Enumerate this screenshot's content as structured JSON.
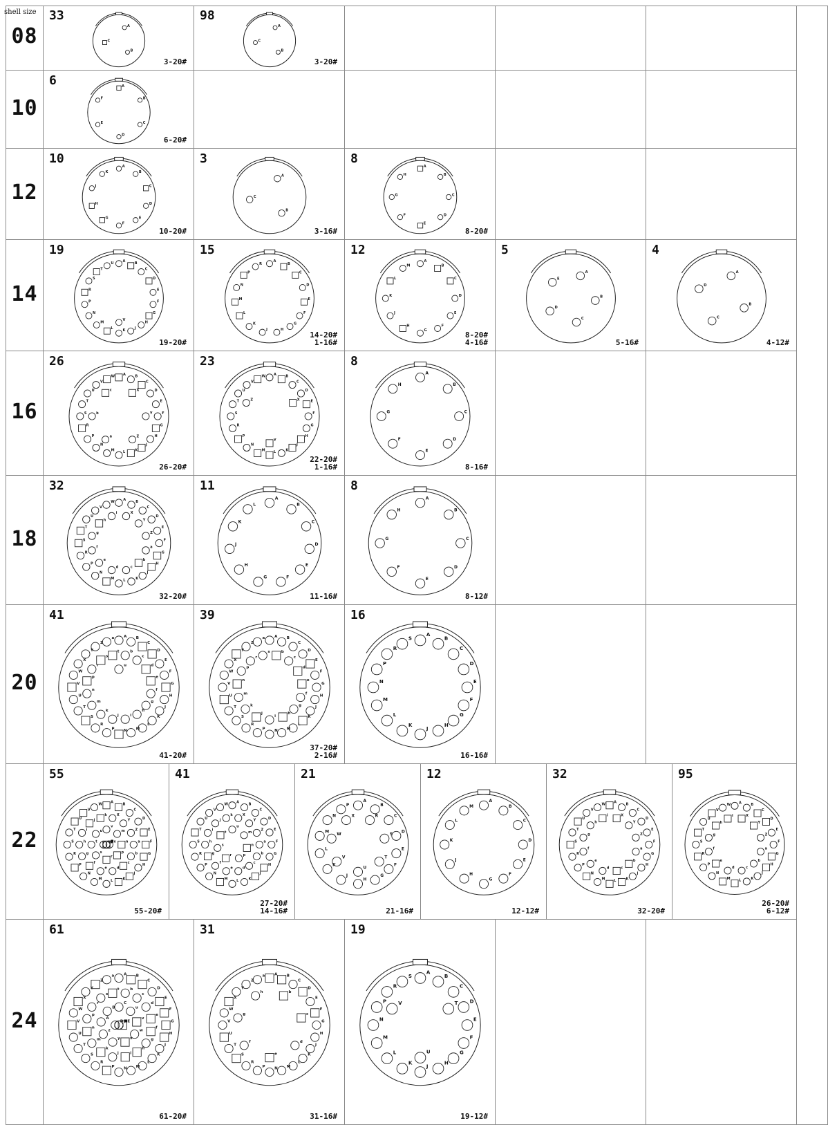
{
  "header": {
    "shell_size_label": "shell size"
  },
  "rows": [
    {
      "size": "08",
      "cells": [
        {
          "count": "33",
          "spec": [
            "3-20#"
          ],
          "contacts": 3
        },
        {
          "count": "98",
          "spec": [
            "3-20#"
          ],
          "contacts": 3
        }
      ]
    },
    {
      "size": "10",
      "cells": [
        {
          "count": "6",
          "spec": [
            "6-20#"
          ],
          "contacts": 6
        }
      ]
    },
    {
      "size": "12",
      "cells": [
        {
          "count": "10",
          "spec": [
            "10-20#"
          ],
          "contacts": 10
        },
        {
          "count": "3",
          "spec": [
            "3-16#"
          ],
          "contacts": 3
        },
        {
          "count": "8",
          "spec": [
            "8-20#"
          ],
          "contacts": 8
        }
      ]
    },
    {
      "size": "14",
      "cells": [
        {
          "count": "19",
          "spec": [
            "19-20#"
          ],
          "contacts": 19
        },
        {
          "count": "15",
          "spec": [
            "14-20#",
            "1-16#"
          ],
          "contacts": 15
        },
        {
          "count": "12",
          "spec": [
            "8-20#",
            "4-16#"
          ],
          "contacts": 12
        },
        {
          "count": "5",
          "spec": [
            "5-16#"
          ],
          "contacts": 5
        },
        {
          "count": "4",
          "spec": [
            "4-12#"
          ],
          "contacts": 4
        }
      ]
    },
    {
      "size": "16",
      "cells": [
        {
          "count": "26",
          "spec": [
            "26-20#"
          ],
          "contacts": 26
        },
        {
          "count": "23",
          "spec": [
            "22-20#",
            "1-16#"
          ],
          "contacts": 23
        },
        {
          "count": "8",
          "spec": [
            "8-16#"
          ],
          "contacts": 8
        }
      ]
    },
    {
      "size": "18",
      "cells": [
        {
          "count": "32",
          "spec": [
            "32-20#"
          ],
          "contacts": 32
        },
        {
          "count": "11",
          "spec": [
            "11-16#"
          ],
          "contacts": 11
        },
        {
          "count": "8",
          "spec": [
            "8-12#"
          ],
          "contacts": 8
        }
      ]
    },
    {
      "size": "20",
      "cells": [
        {
          "count": "41",
          "spec": [
            "41-20#"
          ],
          "contacts": 41
        },
        {
          "count": "39",
          "spec": [
            "37-20#",
            "2-16#"
          ],
          "contacts": 39
        },
        {
          "count": "16",
          "spec": [
            "16-16#"
          ],
          "contacts": 16
        }
      ]
    },
    {
      "size": "22",
      "cells": [
        {
          "count": "55",
          "spec": [
            "55-20#"
          ],
          "contacts": 55
        },
        {
          "count": "41",
          "spec": [
            "27-20#",
            "14-16#"
          ],
          "contacts": 41
        },
        {
          "count": "21",
          "spec": [
            "21-16#"
          ],
          "contacts": 21
        },
        {
          "count": "12",
          "spec": [
            "12-12#"
          ],
          "contacts": 12
        },
        {
          "count": "32",
          "spec": [
            "32-20#"
          ],
          "contacts": 32
        },
        {
          "count": "95",
          "spec": [
            "26-20#",
            "6-12#"
          ],
          "contacts": 32
        }
      ]
    },
    {
      "size": "24",
      "cells": [
        {
          "count": "61",
          "spec": [
            "61-20#"
          ],
          "contacts": 61
        },
        {
          "count": "31",
          "spec": [
            "31-16#"
          ],
          "contacts": 31
        },
        {
          "count": "19",
          "spec": [
            "19-12#"
          ],
          "contacts": 19
        }
      ]
    }
  ]
}
